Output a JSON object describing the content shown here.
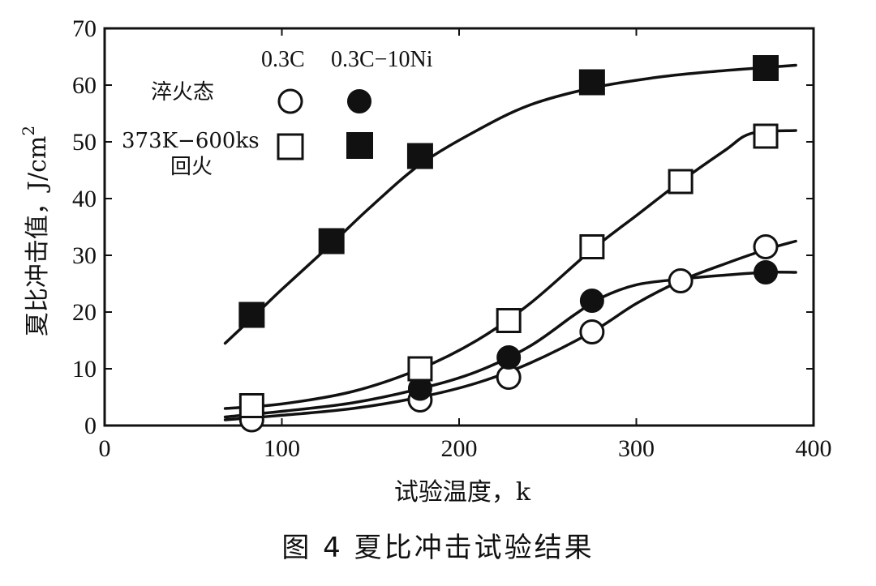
{
  "caption": "图 4  夏比冲击试验结果",
  "chart_data": {
    "type": "line",
    "xlabel": "试验温度，k",
    "ylabel": "夏比冲击值，J/cm",
    "ylabel_sup": "2",
    "xlim": [
      0,
      400
    ],
    "ylim": [
      0,
      70
    ],
    "x_ticks": [
      "0",
      "100",
      "200",
      "300",
      "400"
    ],
    "y_ticks": [
      "0",
      "10",
      "20",
      "30",
      "40",
      "50",
      "60",
      "70"
    ],
    "grid": false,
    "legend": {
      "column_headers": [
        "0.3C",
        "0.3C−10Ni"
      ],
      "row_labels": [
        "淬火态",
        "373K−600ks",
        "回火"
      ]
    },
    "series": [
      {
        "name": "0.3C 淬火态",
        "marker": "open-circle",
        "x": [
          83,
          178,
          228,
          275,
          325,
          373
        ],
        "y": [
          1,
          4.5,
          8.5,
          16.5,
          25.5,
          31.5
        ],
        "curve": [
          [
            68,
            1.0
          ],
          [
            100,
            1.8
          ],
          [
            140,
            3.0
          ],
          [
            178,
            5.0
          ],
          [
            210,
            7.5
          ],
          [
            240,
            11.0
          ],
          [
            275,
            16.5
          ],
          [
            300,
            21.5
          ],
          [
            325,
            25.5
          ],
          [
            350,
            28.5
          ],
          [
            373,
            31.0
          ],
          [
            390,
            32.5
          ]
        ]
      },
      {
        "name": "0.3C−10Ni 淬火态",
        "marker": "filled-circle",
        "x": [
          178,
          228,
          275,
          373
        ],
        "y": [
          6.5,
          12,
          22,
          27
        ],
        "curve": [
          [
            68,
            1.5
          ],
          [
            100,
            2.5
          ],
          [
            140,
            4.0
          ],
          [
            178,
            6.5
          ],
          [
            210,
            9.5
          ],
          [
            240,
            14.0
          ],
          [
            265,
            19.5
          ],
          [
            280,
            22.5
          ],
          [
            300,
            24.8
          ],
          [
            325,
            25.8
          ],
          [
            350,
            26.5
          ],
          [
            373,
            27.0
          ],
          [
            390,
            27.0
          ]
        ]
      },
      {
        "name": "0.3C 373K−600ks 回火",
        "marker": "open-square",
        "x": [
          83,
          178,
          228,
          275,
          325,
          373
        ],
        "y": [
          3.5,
          10,
          18.5,
          31.5,
          43,
          51
        ],
        "curve": [
          [
            68,
            3.0
          ],
          [
            100,
            3.8
          ],
          [
            140,
            6.0
          ],
          [
            178,
            10.0
          ],
          [
            210,
            15.0
          ],
          [
            240,
            21.5
          ],
          [
            275,
            31.0
          ],
          [
            300,
            37.0
          ],
          [
            325,
            43.0
          ],
          [
            350,
            48.5
          ],
          [
            365,
            51.5
          ],
          [
            390,
            52.0
          ]
        ]
      },
      {
        "name": "0.3C−10Ni 373K−600ks 回火",
        "marker": "filled-square",
        "x": [
          83,
          128,
          178,
          275,
          373
        ],
        "y": [
          19.5,
          32.5,
          47.5,
          60.5,
          63
        ],
        "curve": [
          [
            68,
            14.5
          ],
          [
            85,
            19.5
          ],
          [
            100,
            24.0
          ],
          [
            128,
            32.0
          ],
          [
            150,
            38.5
          ],
          [
            178,
            46.0
          ],
          [
            210,
            52.0
          ],
          [
            240,
            56.5
          ],
          [
            275,
            59.5
          ],
          [
            310,
            61.3
          ],
          [
            340,
            62.3
          ],
          [
            373,
            63.1
          ],
          [
            390,
            63.5
          ]
        ]
      }
    ]
  }
}
